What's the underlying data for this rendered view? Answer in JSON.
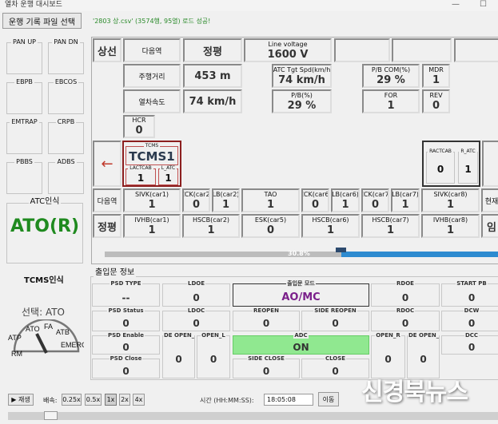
{
  "window": {
    "title": "열차 운행 대시보드",
    "minimize": "—",
    "maximize": "☐"
  },
  "toolbar": {
    "open_file_label": "운행 기록 파일 선택",
    "status": "'2803 상.csv' (3574행, 95열) 로드 성공!"
  },
  "left": {
    "buttons": [
      "PAN UP",
      "PAN DN",
      "EBPB",
      "EBCOS",
      "EMTRAP",
      "CRPB",
      "PBBS",
      "ADBS"
    ],
    "atc_title": "ATC인식",
    "atc_value": "ATO(R)",
    "tcms_title": "TCMS인식",
    "selection": "선택: ATO",
    "gauge": {
      "labels": [
        "RM",
        "ATP",
        "ATO",
        "FA",
        "ATB",
        "EMERG"
      ],
      "selected": "ATO"
    }
  },
  "main": {
    "line": "상선",
    "next_label": "다음역",
    "next_value": "정평",
    "line_voltage": {
      "label": "Line voltage",
      "value": "1600 V"
    },
    "distance_label": "주행거리",
    "distance_value": "453 m",
    "atc_tgt": {
      "label": "ATC Tgt Spd(km/h",
      "value": "74 km/h"
    },
    "pb_com": {
      "label": "P/B COM(%)",
      "value": "29 %"
    },
    "mdr": {
      "label": "MDR",
      "value": "1"
    },
    "speed_label": "열차속도",
    "speed_value": "74 km/h",
    "pb": {
      "label": "P/B(%)",
      "value": "29 %"
    },
    "for": {
      "label": "FOR",
      "value": "1"
    },
    "rev": {
      "label": "REV",
      "value": "0"
    },
    "hcr": {
      "label": "HCR",
      "value": "0"
    },
    "direction_icon": "arrow-left-icon",
    "arrow": "←",
    "tcms": {
      "label": "TCMS",
      "value": "TCMS1",
      "lactcab_label": "LACTCAB",
      "lactcab": "1",
      "latc_label": "L_ATC",
      "latc": "1"
    },
    "ractcab": {
      "label": "RACTCAB",
      "value": "0"
    },
    "ratc": {
      "label": "R_ATC",
      "value": "1"
    },
    "row_a_label": "다음역",
    "row_a_right": "현재",
    "row_a": [
      {
        "label": "SIVK(car1)",
        "value": "1"
      },
      {
        "label": "CCK(car2)",
        "value": "0"
      },
      {
        "label": "LB(car2)",
        "value": "1"
      },
      {
        "label": "TAO",
        "value": "1"
      },
      {
        "label": "CCK(car6)",
        "value": "0"
      },
      {
        "label": "LB(car6)",
        "value": "1"
      },
      {
        "label": "CCK(car7)",
        "value": "0"
      },
      {
        "label": "LB(car7)",
        "value": "1"
      },
      {
        "label": "SIVK(car8)",
        "value": "1"
      }
    ],
    "row_b_label": "정평",
    "row_b_right": "임",
    "row_b": [
      {
        "label": "IVHB(car1)",
        "value": "1"
      },
      {
        "label": "HSCB(car2)",
        "value": "1"
      },
      {
        "label": "ESK(car5)",
        "value": "0"
      },
      {
        "label": "HSCB(car6)",
        "value": "1"
      },
      {
        "label": "HSCB(car7)",
        "value": "1"
      },
      {
        "label": "IVHB(car8)",
        "value": "1"
      }
    ],
    "progress": {
      "percent": 30.8,
      "text": "30.8%"
    }
  },
  "door": {
    "title": "출입문 정보",
    "cells": [
      {
        "label": "PSD TYPE",
        "value": "--"
      },
      {
        "label": "LDOE",
        "value": "0"
      },
      {
        "label": "출입문 모드",
        "value": "AO/MC"
      },
      {
        "label": "RDOE",
        "value": "0"
      },
      {
        "label": "START PB",
        "value": "0"
      },
      {
        "label": "PSD Status",
        "value": "0"
      },
      {
        "label": "LDOC",
        "value": "0"
      },
      {
        "label": "REOPEN",
        "value": "0"
      },
      {
        "label": "SIDE REOPEN",
        "value": "0"
      },
      {
        "label": "RDOC",
        "value": "0"
      },
      {
        "label": "DCW",
        "value": "0"
      },
      {
        "label": "PSD Enable",
        "value": "0"
      },
      {
        "label": "DE OPEN_",
        "value": "0"
      },
      {
        "label": "OPEN_L",
        "value": "0"
      },
      {
        "label": "ADC",
        "value": "ON"
      },
      {
        "label": "OPEN_R",
        "value": "0"
      },
      {
        "label": "DE OPEN_",
        "value": "0"
      },
      {
        "label": "DCC",
        "value": "0"
      },
      {
        "label": "PSD Close",
        "value": "0"
      },
      {
        "label": "SIDE CLOSE",
        "value": "0"
      },
      {
        "label": "CLOSE",
        "value": "0"
      }
    ],
    "mode_color": "#7a1f8a",
    "adc_color": "#90e890"
  },
  "playback": {
    "play_label": "▶ 재생",
    "speed_label": "배속:",
    "speeds": [
      "0.25x",
      "0.5x",
      "1x",
      "2x",
      "4x"
    ],
    "selected_speed": "1x",
    "time_label": "시간 (HH:MM:SS):",
    "time_value": "18:05:08",
    "go_label": "이동",
    "position_percent": 9
  },
  "watermark": "신경북뉴스"
}
